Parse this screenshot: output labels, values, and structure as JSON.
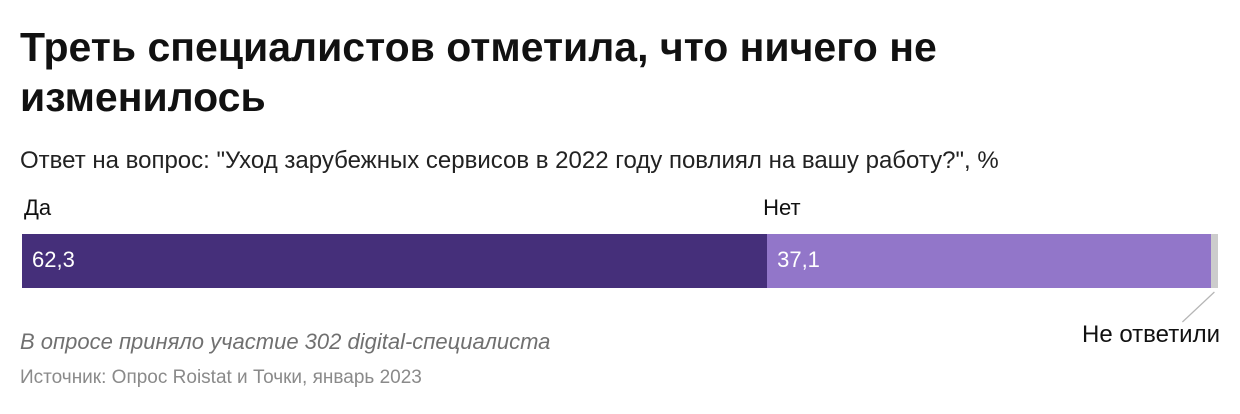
{
  "title": "Треть специалистов отметила, что ничего не изменилось",
  "subtitle": "Ответ на вопрос: \"Уход зарубежных сервисов в 2022 году повлиял на вашу работу?\", %",
  "note": "В опросе приняло участие 302 digital-специалиста",
  "source": "Источник: Опрос Roistat и Точки, январь 2023",
  "colors": {
    "yes": "#452f7a",
    "no": "#9276c9",
    "no_answer": "#cccccc"
  },
  "chart_data": {
    "type": "bar",
    "stacked": true,
    "orientation": "horizontal",
    "categories": [
      "Да",
      "Нет",
      "Не ответили"
    ],
    "values": [
      62.3,
      37.1,
      0.6
    ],
    "value_labels": [
      "62,3",
      "37,1",
      ""
    ],
    "xlim": [
      0,
      100
    ]
  }
}
